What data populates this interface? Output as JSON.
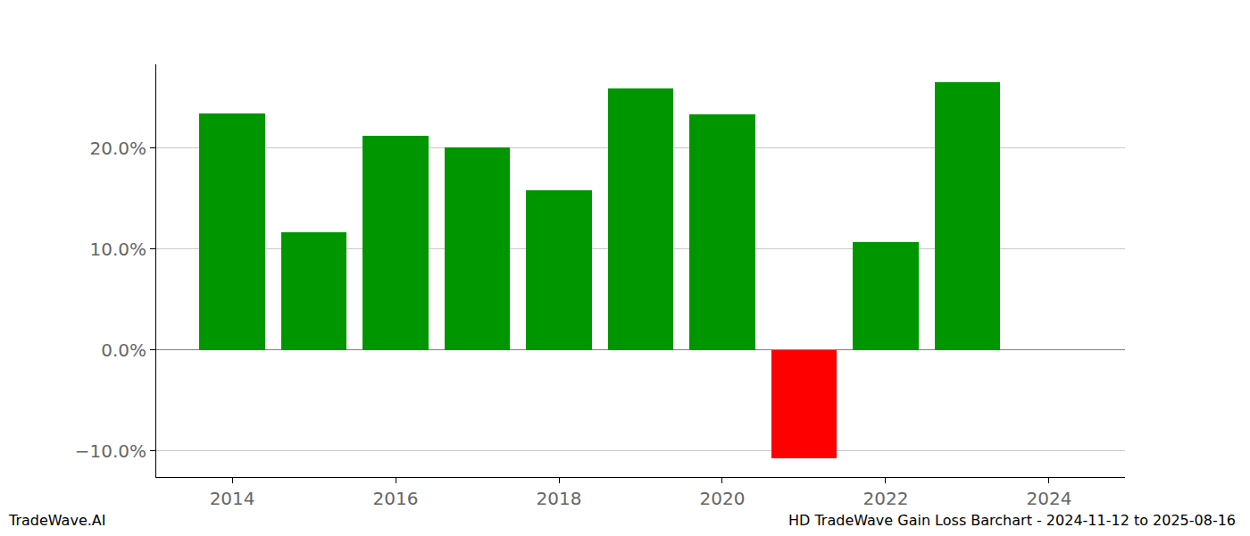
{
  "chart_data": {
    "type": "bar",
    "title": "HD TradeWave Gain Loss Barchart - 2024-11-12 to 2025-08-16",
    "annotations": [
      "TradeWave.AI"
    ],
    "x": [
      2014,
      2015,
      2016,
      2017,
      2018,
      2019,
      2020,
      2021,
      2022,
      2023
    ],
    "values": [
      23.4,
      11.7,
      21.2,
      20.1,
      15.8,
      25.9,
      23.3,
      -10.7,
      10.7,
      26.5
    ],
    "colors": [
      "#009600",
      "#009600",
      "#009600",
      "#009600",
      "#009600",
      "#009600",
      "#009600",
      "#ff0000",
      "#009600",
      "#009600"
    ],
    "xlim": [
      2013.07,
      2024.93
    ],
    "xticks": [
      2014,
      2016,
      2018,
      2020,
      2022,
      2024
    ],
    "ylim": [
      -12.6,
      28.3
    ],
    "yticks": [
      {
        "value": -10,
        "label": "−10.0%"
      },
      {
        "value": 0,
        "label": "0.0%"
      },
      {
        "value": 10,
        "label": "10.0%"
      },
      {
        "value": 20,
        "label": "20.0%"
      }
    ],
    "grid": true
  }
}
